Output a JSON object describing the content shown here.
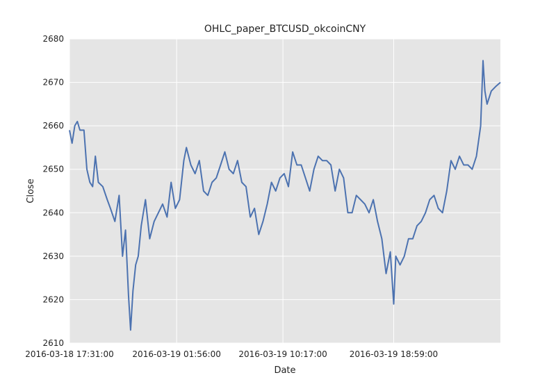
{
  "chart_data": {
    "type": "line",
    "title": "OHLC_paper_BTCUSD_okcoinCNY",
    "xlabel": "Date",
    "ylabel": "Close",
    "x_range": [
      "2016-03-18 17:31:00",
      "2016-03-20 03:22:00"
    ],
    "ylim": [
      2610,
      2680
    ],
    "y_ticks": [
      2610,
      2620,
      2630,
      2640,
      2650,
      2660,
      2670,
      2680
    ],
    "x_ticks": [
      "2016-03-18 17:31:00",
      "2016-03-19 01:56:00",
      "2016-03-19 10:17:00",
      "2016-03-19 18:59:00"
    ],
    "grid": true,
    "series": [
      {
        "color": "#4c72b0",
        "points": [
          [
            "2016-03-18 17:31:00",
            2659
          ],
          [
            "2016-03-18 17:43:00",
            2656
          ],
          [
            "2016-03-18 17:56:00",
            2660
          ],
          [
            "2016-03-18 18:08:00",
            2661
          ],
          [
            "2016-03-18 18:20:00",
            2659
          ],
          [
            "2016-03-18 18:39:00",
            2659
          ],
          [
            "2016-03-18 18:53:00",
            2650
          ],
          [
            "2016-03-18 19:07:00",
            2647
          ],
          [
            "2016-03-18 19:20:00",
            2646
          ],
          [
            "2016-03-18 19:33:00",
            2653
          ],
          [
            "2016-03-18 19:47:00",
            2647
          ],
          [
            "2016-03-18 20:08:00",
            2646
          ],
          [
            "2016-03-18 20:29:00",
            2643
          ],
          [
            "2016-03-18 20:44:00",
            2641
          ],
          [
            "2016-03-18 21:05:00",
            2638
          ],
          [
            "2016-03-18 21:25:00",
            2644
          ],
          [
            "2016-03-18 21:41:00",
            2630
          ],
          [
            "2016-03-18 21:55:00",
            2636
          ],
          [
            "2016-03-18 22:09:00",
            2621
          ],
          [
            "2016-03-18 22:19:00",
            2613
          ],
          [
            "2016-03-18 22:30:00",
            2622
          ],
          [
            "2016-03-18 22:43:00",
            2628
          ],
          [
            "2016-03-18 22:55:00",
            2630
          ],
          [
            "2016-03-18 23:09:00",
            2637
          ],
          [
            "2016-03-18 23:29:00",
            2643
          ],
          [
            "2016-03-18 23:49:00",
            2634
          ],
          [
            "2016-03-19 00:10:00",
            2638
          ],
          [
            "2016-03-19 00:30:00",
            2640
          ],
          [
            "2016-03-19 00:50:00",
            2642
          ],
          [
            "2016-03-19 01:11:00",
            2639
          ],
          [
            "2016-03-19 01:30:00",
            2647
          ],
          [
            "2016-03-19 01:50:00",
            2641
          ],
          [
            "2016-03-19 02:10:00",
            2643
          ],
          [
            "2016-03-19 02:30:00",
            2652
          ],
          [
            "2016-03-19 02:42:00",
            2655
          ],
          [
            "2016-03-19 03:03:00",
            2651
          ],
          [
            "2016-03-19 03:23:00",
            2649
          ],
          [
            "2016-03-19 03:43:00",
            2652
          ],
          [
            "2016-03-19 04:03:00",
            2645
          ],
          [
            "2016-03-19 04:23:00",
            2644
          ],
          [
            "2016-03-19 04:43:00",
            2647
          ],
          [
            "2016-03-19 05:03:00",
            2648
          ],
          [
            "2016-03-19 05:23:00",
            2651
          ],
          [
            "2016-03-19 05:43:00",
            2654
          ],
          [
            "2016-03-19 06:03:00",
            2650
          ],
          [
            "2016-03-19 06:23:00",
            2649
          ],
          [
            "2016-03-19 06:43:00",
            2652
          ],
          [
            "2016-03-19 07:03:00",
            2647
          ],
          [
            "2016-03-19 07:23:00",
            2646
          ],
          [
            "2016-03-19 07:43:00",
            2639
          ],
          [
            "2016-03-19 08:03:00",
            2641
          ],
          [
            "2016-03-19 08:23:00",
            2635
          ],
          [
            "2016-03-19 08:43:00",
            2638
          ],
          [
            "2016-03-19 09:03:00",
            2642
          ],
          [
            "2016-03-19 09:23:00",
            2647
          ],
          [
            "2016-03-19 09:43:00",
            2645
          ],
          [
            "2016-03-19 10:03:00",
            2648
          ],
          [
            "2016-03-19 10:23:00",
            2649
          ],
          [
            "2016-03-19 10:43:00",
            2646
          ],
          [
            "2016-03-19 11:03:00",
            2654
          ],
          [
            "2016-03-19 11:23:00",
            2651
          ],
          [
            "2016-03-19 11:43:00",
            2651
          ],
          [
            "2016-03-19 12:03:00",
            2648
          ],
          [
            "2016-03-19 12:23:00",
            2645
          ],
          [
            "2016-03-19 12:43:00",
            2650
          ],
          [
            "2016-03-19 13:03:00",
            2653
          ],
          [
            "2016-03-19 13:23:00",
            2652
          ],
          [
            "2016-03-19 13:43:00",
            2652
          ],
          [
            "2016-03-19 14:03:00",
            2651
          ],
          [
            "2016-03-19 14:23:00",
            2645
          ],
          [
            "2016-03-19 14:43:00",
            2650
          ],
          [
            "2016-03-19 15:03:00",
            2648
          ],
          [
            "2016-03-19 15:23:00",
            2640
          ],
          [
            "2016-03-19 15:43:00",
            2640
          ],
          [
            "2016-03-19 16:03:00",
            2644
          ],
          [
            "2016-03-19 16:23:00",
            2643
          ],
          [
            "2016-03-19 16:43:00",
            2642
          ],
          [
            "2016-03-19 17:03:00",
            2640
          ],
          [
            "2016-03-19 17:23:00",
            2643
          ],
          [
            "2016-03-19 17:43:00",
            2638
          ],
          [
            "2016-03-19 18:03:00",
            2634
          ],
          [
            "2016-03-19 18:23:00",
            2626
          ],
          [
            "2016-03-19 18:43:00",
            2631
          ],
          [
            "2016-03-19 18:59:00",
            2619
          ],
          [
            "2016-03-19 19:09:00",
            2630
          ],
          [
            "2016-03-19 19:29:00",
            2628
          ],
          [
            "2016-03-19 19:49:00",
            2630
          ],
          [
            "2016-03-19 20:09:00",
            2634
          ],
          [
            "2016-03-19 20:29:00",
            2634
          ],
          [
            "2016-03-19 20:49:00",
            2637
          ],
          [
            "2016-03-19 21:09:00",
            2638
          ],
          [
            "2016-03-19 21:29:00",
            2640
          ],
          [
            "2016-03-19 21:49:00",
            2643
          ],
          [
            "2016-03-19 22:09:00",
            2644
          ],
          [
            "2016-03-19 22:29:00",
            2641
          ],
          [
            "2016-03-19 22:49:00",
            2640
          ],
          [
            "2016-03-19 23:09:00",
            2645
          ],
          [
            "2016-03-19 23:29:00",
            2652
          ],
          [
            "2016-03-19 23:49:00",
            2650
          ],
          [
            "2016-03-20 00:09:00",
            2653
          ],
          [
            "2016-03-20 00:29:00",
            2651
          ],
          [
            "2016-03-20 00:49:00",
            2651
          ],
          [
            "2016-03-20 01:09:00",
            2650
          ],
          [
            "2016-03-20 01:29:00",
            2653
          ],
          [
            "2016-03-20 01:49:00",
            2660
          ],
          [
            "2016-03-20 02:00:00",
            2675
          ],
          [
            "2016-03-20 02:09:00",
            2668
          ],
          [
            "2016-03-20 02:19:00",
            2665
          ],
          [
            "2016-03-20 02:39:00",
            2668
          ],
          [
            "2016-03-20 02:59:00",
            2669
          ],
          [
            "2016-03-20 03:22:00",
            2670
          ]
        ]
      }
    ]
  }
}
